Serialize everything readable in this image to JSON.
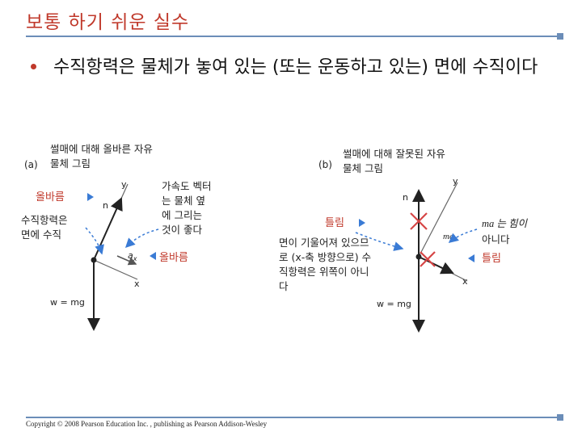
{
  "slide": {
    "title": "보통 하기 쉬운 실수",
    "bullet": "수직항력은 물체가 놓여 있는 (또는 운동하고 있는) 면에 수직이다",
    "copyright": "Copyright © 2008 Pearson Education Inc. , publishing as Pearson Addison-Wesley"
  },
  "figure_a": {
    "letter": "(a)",
    "caption_line1": "썰매에 대해 올바른 자유",
    "caption_line2": "물체 그림",
    "correct_label_top": "올바름",
    "normal_note_line1": "수직항력은",
    "normal_note_line2": "면에 수직",
    "accel_note_line1": "가속도 벡터",
    "accel_note_line2": "는 물체 옆",
    "accel_note_line3": "에 그리는",
    "accel_note_line4": "것이 좋다",
    "correct_label_bottom": "올바름",
    "label_n": "n",
    "label_y": "y",
    "label_x": "x",
    "label_ax": "a",
    "label_ax_sub": "x",
    "label_w": "w = mg"
  },
  "figure_b": {
    "letter": "(b)",
    "caption_line1": "썰매에 대해 잘못된 자유",
    "caption_line2": "물체 그림",
    "wrong_label_top": "틀림",
    "tilt_note_line1": "면이 기울어져 있으므",
    "tilt_note_line2": "로 (x-축 방향으로) 수",
    "tilt_note_line3": "직항력은 위쪽이 아니",
    "tilt_note_line4": "다",
    "ma_note_line1": "ma 는 힘이",
    "ma_note_line2": "아니다",
    "wrong_label_bottom": "틀림",
    "label_n": "n",
    "label_y": "y",
    "label_x": "x",
    "label_ma": "ma",
    "label_w": "w = mg"
  },
  "colors": {
    "title": "#c0392b",
    "rule": "#6b8db8",
    "callout_arrow": "#3a7bd5",
    "error_mark": "#d64545"
  }
}
